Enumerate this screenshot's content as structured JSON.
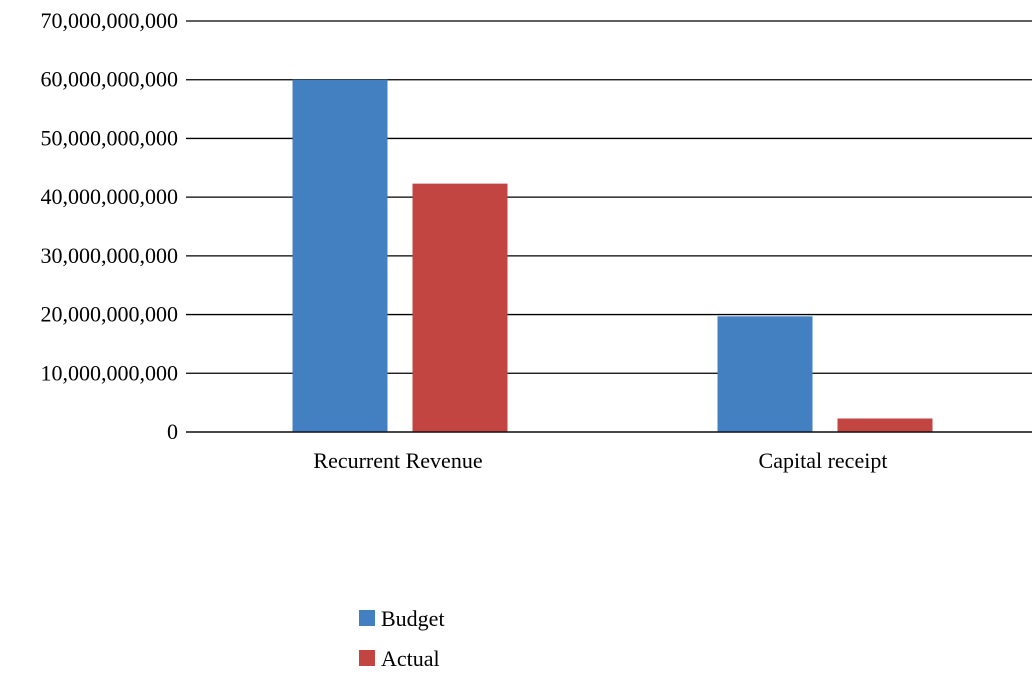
{
  "chart_data": {
    "type": "bar",
    "categories": [
      "Recurrent Revenue",
      "Capital receipt"
    ],
    "series": [
      {
        "name": "Budget",
        "values": [
          60000000000,
          19700000000
        ],
        "color": "#4380C2"
      },
      {
        "name": "Actual",
        "values": [
          42300000000,
          2300000000
        ],
        "color": "#C24542"
      }
    ],
    "y_ticks": [
      "0",
      "10,000,000,000",
      "20,000,000,000",
      "30,000,000,000",
      "40,000,000,000",
      "50,000,000,000",
      "60,000,000,000",
      "70,000,000,000"
    ],
    "ylim": [
      0,
      70000000000
    ],
    "grid": true,
    "legend_position": "bottom"
  }
}
